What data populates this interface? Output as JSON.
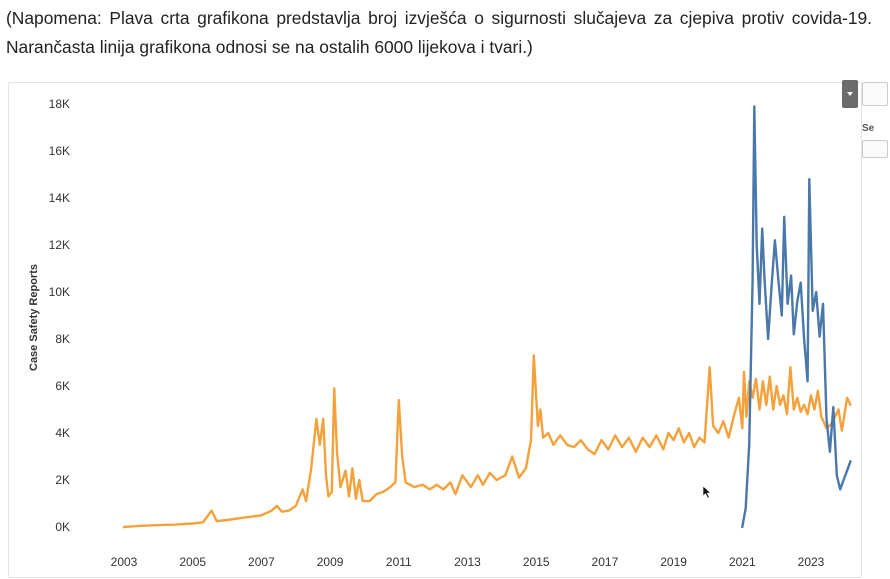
{
  "caption": "(Napomena: Plava crta grafikona predstavlja broj izvješća o sigurnosti slučajeva za cjepiva protiv covida-19. Narančasta linija grafikona odnosi se na ostalih 6000 lijekova i tvari.)",
  "side_panel": {
    "fragment": "Se"
  },
  "chart_data": {
    "type": "line",
    "title": "",
    "xlabel": "",
    "ylabel": "Case Safety Reports",
    "xlim": [
      2002.2,
      2023.8
    ],
    "ylim": [
      0,
      18000
    ],
    "x_ticks": [
      2003,
      2005,
      2007,
      2009,
      2011,
      2013,
      2015,
      2017,
      2019,
      2021,
      2023
    ],
    "y_ticks": [
      0,
      2000,
      4000,
      6000,
      8000,
      10000,
      12000,
      14000,
      16000,
      18000
    ],
    "y_tick_labels": [
      "0K",
      "2K",
      "4K",
      "6K",
      "8K",
      "10K",
      "12K",
      "14K",
      "16K",
      "18K"
    ],
    "grid": false,
    "legend": "none",
    "series": [
      {
        "color": "#f5a13b",
        "points": [
          [
            2003.0,
            0
          ],
          [
            2003.5,
            50
          ],
          [
            2004.0,
            80
          ],
          [
            2004.5,
            100
          ],
          [
            2005.0,
            150
          ],
          [
            2005.3,
            200
          ],
          [
            2005.55,
            700
          ],
          [
            2005.7,
            250
          ],
          [
            2006.0,
            300
          ],
          [
            2006.5,
            400
          ],
          [
            2007.0,
            500
          ],
          [
            2007.3,
            700
          ],
          [
            2007.45,
            900
          ],
          [
            2007.6,
            650
          ],
          [
            2007.8,
            700
          ],
          [
            2008.0,
            900
          ],
          [
            2008.2,
            1600
          ],
          [
            2008.3,
            1100
          ],
          [
            2008.45,
            2500
          ],
          [
            2008.6,
            4600
          ],
          [
            2008.7,
            3500
          ],
          [
            2008.8,
            4600
          ],
          [
            2008.88,
            2200
          ],
          [
            2008.95,
            1300
          ],
          [
            2009.05,
            1500
          ],
          [
            2009.12,
            5900
          ],
          [
            2009.2,
            3200
          ],
          [
            2009.3,
            1700
          ],
          [
            2009.45,
            2400
          ],
          [
            2009.55,
            1300
          ],
          [
            2009.65,
            2500
          ],
          [
            2009.75,
            1200
          ],
          [
            2009.85,
            2000
          ],
          [
            2009.95,
            1100
          ],
          [
            2010.15,
            1100
          ],
          [
            2010.35,
            1400
          ],
          [
            2010.55,
            1500
          ],
          [
            2010.75,
            1700
          ],
          [
            2010.9,
            1900
          ],
          [
            2011.0,
            5400
          ],
          [
            2011.1,
            3000
          ],
          [
            2011.2,
            1900
          ],
          [
            2011.45,
            1700
          ],
          [
            2011.7,
            1800
          ],
          [
            2011.9,
            1600
          ],
          [
            2012.1,
            1800
          ],
          [
            2012.3,
            1600
          ],
          [
            2012.5,
            1900
          ],
          [
            2012.65,
            1400
          ],
          [
            2012.85,
            2200
          ],
          [
            2013.1,
            1700
          ],
          [
            2013.3,
            2200
          ],
          [
            2013.45,
            1800
          ],
          [
            2013.65,
            2300
          ],
          [
            2013.85,
            2000
          ],
          [
            2014.1,
            2200
          ],
          [
            2014.3,
            3000
          ],
          [
            2014.5,
            2100
          ],
          [
            2014.7,
            2500
          ],
          [
            2014.85,
            3700
          ],
          [
            2014.93,
            7300
          ],
          [
            2015.0,
            5500
          ],
          [
            2015.05,
            4300
          ],
          [
            2015.12,
            5000
          ],
          [
            2015.2,
            3800
          ],
          [
            2015.35,
            4000
          ],
          [
            2015.5,
            3500
          ],
          [
            2015.7,
            3900
          ],
          [
            2015.9,
            3500
          ],
          [
            2016.1,
            3400
          ],
          [
            2016.3,
            3700
          ],
          [
            2016.5,
            3300
          ],
          [
            2016.7,
            3100
          ],
          [
            2016.9,
            3700
          ],
          [
            2017.1,
            3300
          ],
          [
            2017.3,
            3900
          ],
          [
            2017.5,
            3400
          ],
          [
            2017.7,
            3800
          ],
          [
            2017.9,
            3200
          ],
          [
            2018.1,
            3800
          ],
          [
            2018.3,
            3400
          ],
          [
            2018.5,
            3900
          ],
          [
            2018.7,
            3300
          ],
          [
            2018.85,
            4000
          ],
          [
            2019.0,
            3700
          ],
          [
            2019.15,
            4200
          ],
          [
            2019.3,
            3600
          ],
          [
            2019.45,
            4000
          ],
          [
            2019.6,
            3400
          ],
          [
            2019.75,
            3800
          ],
          [
            2019.9,
            3600
          ],
          [
            2020.05,
            6800
          ],
          [
            2020.15,
            4300
          ],
          [
            2020.3,
            4000
          ],
          [
            2020.45,
            4500
          ],
          [
            2020.6,
            3800
          ],
          [
            2020.75,
            4700
          ],
          [
            2020.9,
            5500
          ],
          [
            2021.0,
            4200
          ],
          [
            2021.05,
            6600
          ],
          [
            2021.12,
            4700
          ],
          [
            2021.2,
            6200
          ],
          [
            2021.3,
            5500
          ],
          [
            2021.4,
            6300
          ],
          [
            2021.5,
            5000
          ],
          [
            2021.6,
            6200
          ],
          [
            2021.7,
            5200
          ],
          [
            2021.8,
            6400
          ],
          [
            2021.9,
            5000
          ],
          [
            2022.0,
            6000
          ],
          [
            2022.1,
            5200
          ],
          [
            2022.2,
            5600
          ],
          [
            2022.3,
            4800
          ],
          [
            2022.4,
            6800
          ],
          [
            2022.5,
            5000
          ],
          [
            2022.6,
            5500
          ],
          [
            2022.7,
            4900
          ],
          [
            2022.8,
            5200
          ],
          [
            2022.9,
            4800
          ],
          [
            2023.0,
            5600
          ],
          [
            2023.1,
            5000
          ],
          [
            2023.2,
            5800
          ],
          [
            2023.3,
            4700
          ],
          [
            2023.45,
            4200
          ],
          [
            2023.6,
            4400
          ],
          [
            2023.8,
            5000
          ],
          [
            2023.9,
            4100
          ],
          [
            2024.05,
            5500
          ],
          [
            2024.15,
            5200
          ]
        ]
      },
      {
        "color": "#4a78aa",
        "points": [
          [
            2021.0,
            0
          ],
          [
            2021.1,
            800
          ],
          [
            2021.2,
            3500
          ],
          [
            2021.3,
            10500
          ],
          [
            2021.35,
            17900
          ],
          [
            2021.42,
            12000
          ],
          [
            2021.5,
            9500
          ],
          [
            2021.58,
            12700
          ],
          [
            2021.65,
            10500
          ],
          [
            2021.75,
            8000
          ],
          [
            2021.85,
            10200
          ],
          [
            2021.95,
            12200
          ],
          [
            2022.05,
            10500
          ],
          [
            2022.15,
            9000
          ],
          [
            2022.22,
            13200
          ],
          [
            2022.32,
            9500
          ],
          [
            2022.42,
            10700
          ],
          [
            2022.5,
            8200
          ],
          [
            2022.6,
            9600
          ],
          [
            2022.7,
            10400
          ],
          [
            2022.8,
            8000
          ],
          [
            2022.9,
            6200
          ],
          [
            2022.95,
            14800
          ],
          [
            2023.05,
            9200
          ],
          [
            2023.15,
            10000
          ],
          [
            2023.25,
            8100
          ],
          [
            2023.35,
            9500
          ],
          [
            2023.45,
            4600
          ],
          [
            2023.55,
            3200
          ],
          [
            2023.65,
            5100
          ],
          [
            2023.75,
            2200
          ],
          [
            2023.85,
            1600
          ],
          [
            2023.95,
            2000
          ],
          [
            2024.05,
            2400
          ],
          [
            2024.15,
            2800
          ]
        ]
      }
    ]
  }
}
